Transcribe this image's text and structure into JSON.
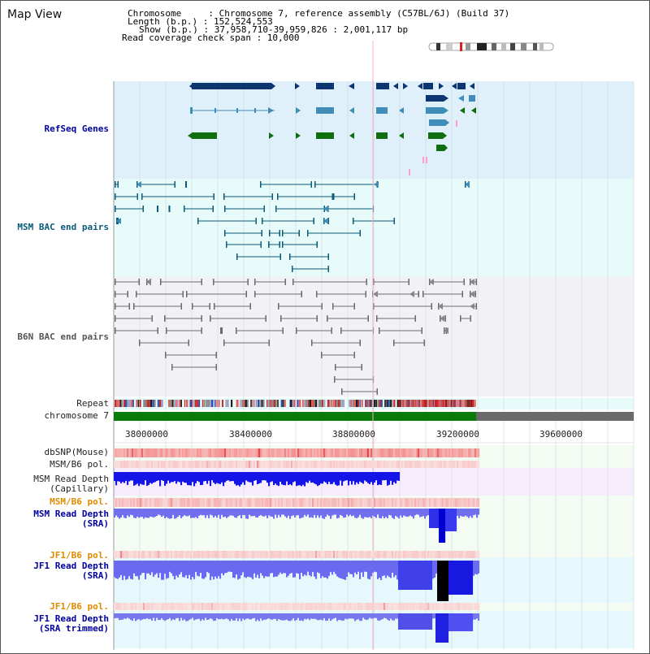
{
  "title": "Map View",
  "info": {
    "line1": "Chromosome     : Chromosome 7, reference assembly (C57BL/6J) (Build 37)",
    "line2": "Length (b.p.) : 152,524,553",
    "line3": "Show (b.p.) : 37,958,710-39,959,826 : 2,001,117 bp",
    "line4": "Read coverage check span : 10,000"
  },
  "tracks": {
    "refseq": "RefSeq Genes",
    "msm_bac": "MSM BAC end pairs",
    "b6n_bac": "B6N BAC end pairs",
    "repeat": "Repeat",
    "chromosome": "chromosome 7",
    "dbsnp": "dbSNP(Mouse)",
    "msm_b6_pol_1": "MSM/B6 pol.",
    "msm_depth_cap": "MSM Read Depth\n(Capillary)",
    "msm_b6_pol_2": "MSM/B6 pol.",
    "msm_depth_sra": "MSM Read Depth\n(SRA)",
    "jf1_b6_pol_1": "JF1/B6 pol.",
    "jf1_depth_sra": "JF1 Read Depth\n(SRA)",
    "jf1_b6_pol_2": "JF1/B6 pol.",
    "jf1_depth_trim": "JF1 Read Depth\n(SRA trimmed)"
  },
  "axis_ticks": [
    "38000000",
    "38400000",
    "38800000",
    "39200000",
    "39600000"
  ],
  "colors": {
    "refseq_bg": "#dff0fa",
    "bac_bg": "#e8fbfb",
    "b6n_bg": "#f2f2f6",
    "gene_dark": "#0d3670",
    "gene_mid": "#3f8db8",
    "gene_green": "#0f6e0f",
    "chrom_green": "#0a7a0a",
    "chrom_grey": "#6a6a6a",
    "depth_blue": "#5a5af0",
    "depth_dark": "#1414e6"
  }
}
